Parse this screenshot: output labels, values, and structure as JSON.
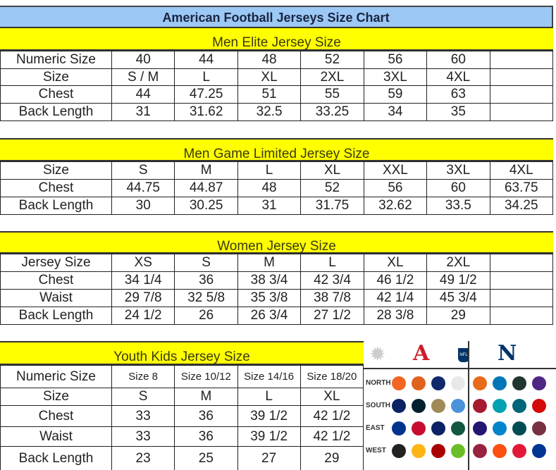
{
  "title": "American Football Jerseys Size Chart",
  "sections": [
    {
      "heading": "Men Elite Jersey Size",
      "rows": [
        [
          "Numeric Size",
          "40",
          "44",
          "48",
          "52",
          "56",
          "60",
          ""
        ],
        [
          "Size",
          "S / M",
          "L",
          "XL",
          "2XL",
          "3XL",
          "4XL",
          ""
        ],
        [
          "Chest",
          "44",
          "47.25",
          "51",
          "55",
          "59",
          "63",
          ""
        ],
        [
          "Back Length",
          "31",
          "31.62",
          "32.5",
          "33.25",
          "34",
          "35",
          ""
        ]
      ]
    },
    {
      "heading": "Men Game Limited Jersey Size",
      "rows": [
        [
          "Size",
          "S",
          "M",
          "L",
          "XL",
          "XXL",
          "3XL",
          "4XL"
        ],
        [
          "Chest",
          "44.75",
          "44.87",
          "48",
          "52",
          "56",
          "60",
          "63.75"
        ],
        [
          "Back Length",
          "30",
          "30.25",
          "31",
          "31.75",
          "32.62",
          "33.5",
          "34.25"
        ]
      ]
    },
    {
      "heading": "Women Jersey Size",
      "rows": [
        [
          "Jersey Size",
          "XS",
          "S",
          "M",
          "L",
          "XL",
          "2XL",
          ""
        ],
        [
          "Chest",
          "34 1/4",
          "36",
          "38 3/4",
          "42 3/4",
          "46 1/2",
          "49 1/2",
          ""
        ],
        [
          "Waist",
          "29 7/8",
          "32 5/8",
          "35 3/8",
          "38 7/8",
          "42 1/4",
          "45 3/4",
          ""
        ],
        [
          "Back Length",
          "24 1/2",
          "26",
          "26 3/4",
          "27 1/2",
          "28 3/8",
          "29",
          ""
        ]
      ]
    },
    {
      "heading": "Youth Kids Jersey Size",
      "rows": [
        [
          "Numeric Size",
          "Size 8",
          "Size 10/12",
          "Size 14/16",
          "Size 18/20"
        ],
        [
          "Size",
          "S",
          "M",
          "L",
          "XL"
        ],
        [
          "Chest",
          "33",
          "36",
          "39 1/2",
          "42 1/2"
        ],
        [
          "Waist",
          "33",
          "36",
          "39 1/2",
          "42 1/2"
        ],
        [
          "Back Length",
          "23",
          "25",
          "27",
          "29"
        ]
      ]
    }
  ],
  "logos": {
    "afc": "A",
    "nfc": "N",
    "nfl": "NFL",
    "divisions": [
      "NORTH",
      "SOUTH",
      "EAST",
      "WEST"
    ],
    "afc_colors": [
      [
        "#f26522",
        "#e0621c",
        "#0f2a6b",
        "#e8e8e8"
      ],
      [
        "#0b2265",
        "#03202f",
        "#a08a58",
        "#4b92db"
      ],
      [
        "#00338d",
        "#c60c30",
        "#0b2265",
        "#125740"
      ],
      [
        "#222222",
        "#fdb515",
        "#aa0000",
        "#69be28"
      ]
    ],
    "nfc_colors": [
      [
        "#e86a1b",
        "#0076b6",
        "#203731",
        "#4f2683"
      ],
      [
        "#a71930",
        "#00a1b0",
        "#006778",
        "#d50a0a"
      ],
      [
        "#241773",
        "#0085ca",
        "#004c54",
        "#773141"
      ],
      [
        "#97233f",
        "#fb4f14",
        "#e31837",
        "#003594"
      ]
    ]
  },
  "colors": {
    "title_bg": "#9cc8f5",
    "heading_bg": "#ffff00"
  }
}
